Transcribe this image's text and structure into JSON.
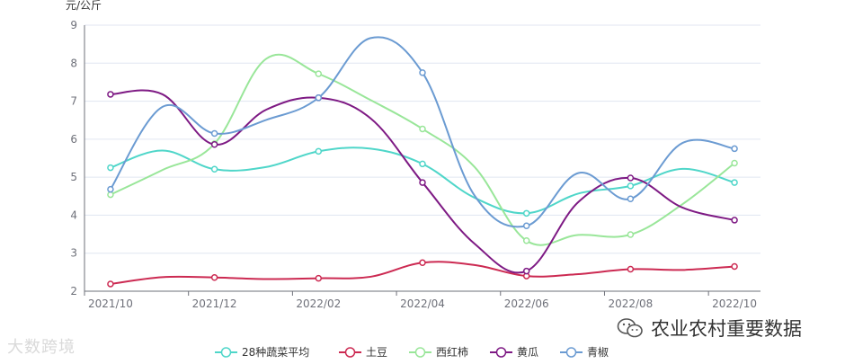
{
  "chart_data": {
    "type": "line",
    "ylabel": "元/公斤",
    "xlabel": "",
    "ylim": [
      2,
      9
    ],
    "yticks": [
      "2",
      "3",
      "4",
      "5",
      "6",
      "7",
      "8",
      "9"
    ],
    "x": [
      "2021/10",
      "2021/11",
      "2021/12",
      "2022/01",
      "2022/02",
      "2022/03",
      "2022/04",
      "2022/05",
      "2022/06",
      "2022/07",
      "2022/08",
      "2022/09",
      "2022/10"
    ],
    "xtick_labels": [
      "2021/10",
      "2021/12",
      "2022/02",
      "2022/04",
      "2022/06",
      "2022/08",
      "2022/10"
    ],
    "grid": true,
    "legend_position": "bottom-center",
    "smooth": true,
    "series": [
      {
        "name": "28种蔬菜平均",
        "color": "#4fd6c9",
        "values": [
          5.25,
          5.7,
          5.21,
          5.27,
          5.68,
          5.75,
          5.35,
          4.46,
          4.05,
          4.57,
          4.77,
          5.22,
          4.86
        ]
      },
      {
        "name": "土豆",
        "color": "#cc2a52",
        "values": [
          2.19,
          2.37,
          2.36,
          2.32,
          2.34,
          2.38,
          2.75,
          2.69,
          2.4,
          2.45,
          2.58,
          2.56,
          2.65
        ]
      },
      {
        "name": "西红柿",
        "color": "#99e699",
        "values": [
          4.54,
          5.19,
          5.88,
          8.12,
          7.72,
          7.03,
          6.27,
          5.27,
          3.33,
          3.48,
          3.49,
          4.29,
          5.37
        ]
      },
      {
        "name": "黄瓜",
        "color": "#7e1a84",
        "values": [
          7.18,
          7.18,
          5.86,
          6.78,
          7.09,
          6.55,
          4.86,
          3.25,
          2.53,
          4.35,
          4.98,
          4.2,
          3.87
        ]
      },
      {
        "name": "青椒",
        "color": "#6b9bd2",
        "values": [
          4.68,
          6.85,
          6.15,
          6.51,
          7.09,
          8.66,
          7.75,
          4.52,
          3.72,
          5.11,
          4.43,
          5.9,
          5.75
        ]
      }
    ],
    "markers": [
      0,
      2,
      4,
      6,
      8,
      10,
      12
    ]
  },
  "watermarks": {
    "left": "大数跨境",
    "right": "农业农村重要数据"
  },
  "colors": {
    "axis": "#6e7079",
    "grid": "#e0e6f1",
    "text": "#333333"
  }
}
